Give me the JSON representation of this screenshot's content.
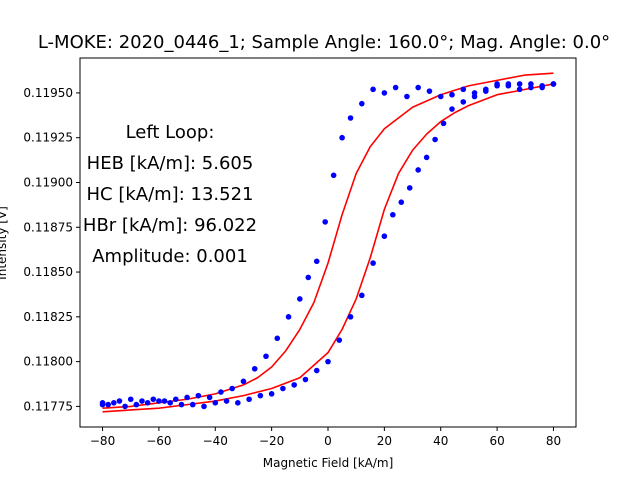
{
  "chart_data": {
    "type": "scatter",
    "title": "L-MOKE: 2020_0446_1; Sample Angle: 160.0°; Mag. Angle: 0.0°",
    "xlabel": "Magnetic Field [kA/m]",
    "ylabel": "Intensity [V]",
    "xlim": [
      -88,
      88
    ],
    "ylim": [
      0.117635,
      0.119695
    ],
    "xticks": [
      -80,
      -60,
      -40,
      -20,
      0,
      20,
      40,
      60,
      80
    ],
    "yticks": [
      0.11775,
      0.118,
      0.11825,
      0.1185,
      0.11875,
      0.119,
      0.11925,
      0.1195
    ],
    "ytick_labels": [
      "0.11775",
      "0.11800",
      "0.11825",
      "0.11850",
      "0.11875",
      "0.11900",
      "0.11925",
      "0.11950"
    ],
    "grid": false,
    "annotation_lines": [
      "Left Loop:",
      "HEB [kA/m]: 5.605",
      "HC [kA/m]: 13.521",
      "HBr [kA/m]: 96.022",
      "Amplitude: 0.001"
    ],
    "series": [
      {
        "kind": "points",
        "color": "#0000ff",
        "branch": "descending",
        "x": [
          80,
          76,
          72,
          68,
          64,
          60,
          56,
          52,
          48,
          44,
          40,
          36,
          32,
          28,
          24,
          20,
          16,
          12,
          8,
          5,
          2,
          -1,
          -4,
          -7,
          -10,
          -14,
          -18,
          -22,
          -26,
          -30,
          -34,
          -38,
          -42,
          -46,
          -50,
          -54,
          -58,
          -62,
          -66,
          -70,
          -74,
          -78,
          -80
        ],
        "y": [
          0.11955,
          0.11953,
          0.11955,
          0.11952,
          0.11954,
          0.11955,
          0.11951,
          0.1195,
          0.11952,
          0.11949,
          0.11948,
          0.11951,
          0.11953,
          0.11948,
          0.11953,
          0.1195,
          0.11952,
          0.11944,
          0.11936,
          0.11925,
          0.11904,
          0.11878,
          0.11856,
          0.11847,
          0.11835,
          0.11825,
          0.11813,
          0.11803,
          0.11796,
          0.11789,
          0.11785,
          0.11783,
          0.1178,
          0.11781,
          0.1178,
          0.11779,
          0.11778,
          0.11779,
          0.11778,
          0.11779,
          0.11778,
          0.11776,
          0.11777
        ]
      },
      {
        "kind": "points",
        "color": "#0000ff",
        "branch": "ascending",
        "x": [
          -80,
          -76,
          -72,
          -68,
          -64,
          -60,
          -56,
          -52,
          -48,
          -44,
          -40,
          -36,
          -32,
          -28,
          -24,
          -20,
          -16,
          -12,
          -8,
          -4,
          0,
          4,
          8,
          12,
          16,
          20,
          23,
          26,
          29,
          32,
          35,
          38,
          41,
          44,
          48,
          52,
          56,
          60,
          64,
          68,
          72,
          76,
          80
        ],
        "y": [
          0.11776,
          0.11777,
          0.11775,
          0.11776,
          0.11777,
          0.11778,
          0.11777,
          0.11776,
          0.11776,
          0.11775,
          0.11777,
          0.11778,
          0.11777,
          0.11779,
          0.11781,
          0.11782,
          0.11785,
          0.11787,
          0.1179,
          0.11795,
          0.118,
          0.11812,
          0.11825,
          0.11837,
          0.11855,
          0.1187,
          0.11882,
          0.11889,
          0.11897,
          0.11907,
          0.11914,
          0.11924,
          0.11933,
          0.11941,
          0.11945,
          0.11948,
          0.11952,
          0.11954,
          0.11955,
          0.11955,
          0.11953,
          0.11954,
          0.11955
        ]
      },
      {
        "kind": "fit-line",
        "color": "#ff0000",
        "branch": "descending",
        "x": [
          80,
          70,
          60,
          50,
          40,
          30,
          20,
          15,
          10,
          5,
          0,
          -5,
          -10,
          -15,
          -20,
          -25,
          -30,
          -40,
          -50,
          -60,
          -70,
          -80
        ],
        "y": [
          0.11961,
          0.1196,
          0.11957,
          0.11954,
          0.11949,
          0.11942,
          0.1193,
          0.1192,
          0.11905,
          0.11882,
          0.11855,
          0.11833,
          0.11818,
          0.11806,
          0.11797,
          0.11791,
          0.11787,
          0.11782,
          0.11779,
          0.11777,
          0.11775,
          0.11774
        ]
      },
      {
        "kind": "fit-line",
        "color": "#ff0000",
        "branch": "ascending",
        "x": [
          -80,
          -70,
          -60,
          -50,
          -40,
          -30,
          -20,
          -10,
          0,
          5,
          10,
          15,
          20,
          25,
          30,
          35,
          40,
          45,
          50,
          60,
          70,
          80
        ],
        "y": [
          0.11772,
          0.11773,
          0.11774,
          0.11776,
          0.11778,
          0.11781,
          0.11785,
          0.11791,
          0.11805,
          0.11818,
          0.11835,
          0.11858,
          0.11885,
          0.11905,
          0.11918,
          0.11927,
          0.11934,
          0.11939,
          0.11943,
          0.11949,
          0.11952,
          0.11955
        ]
      }
    ]
  }
}
